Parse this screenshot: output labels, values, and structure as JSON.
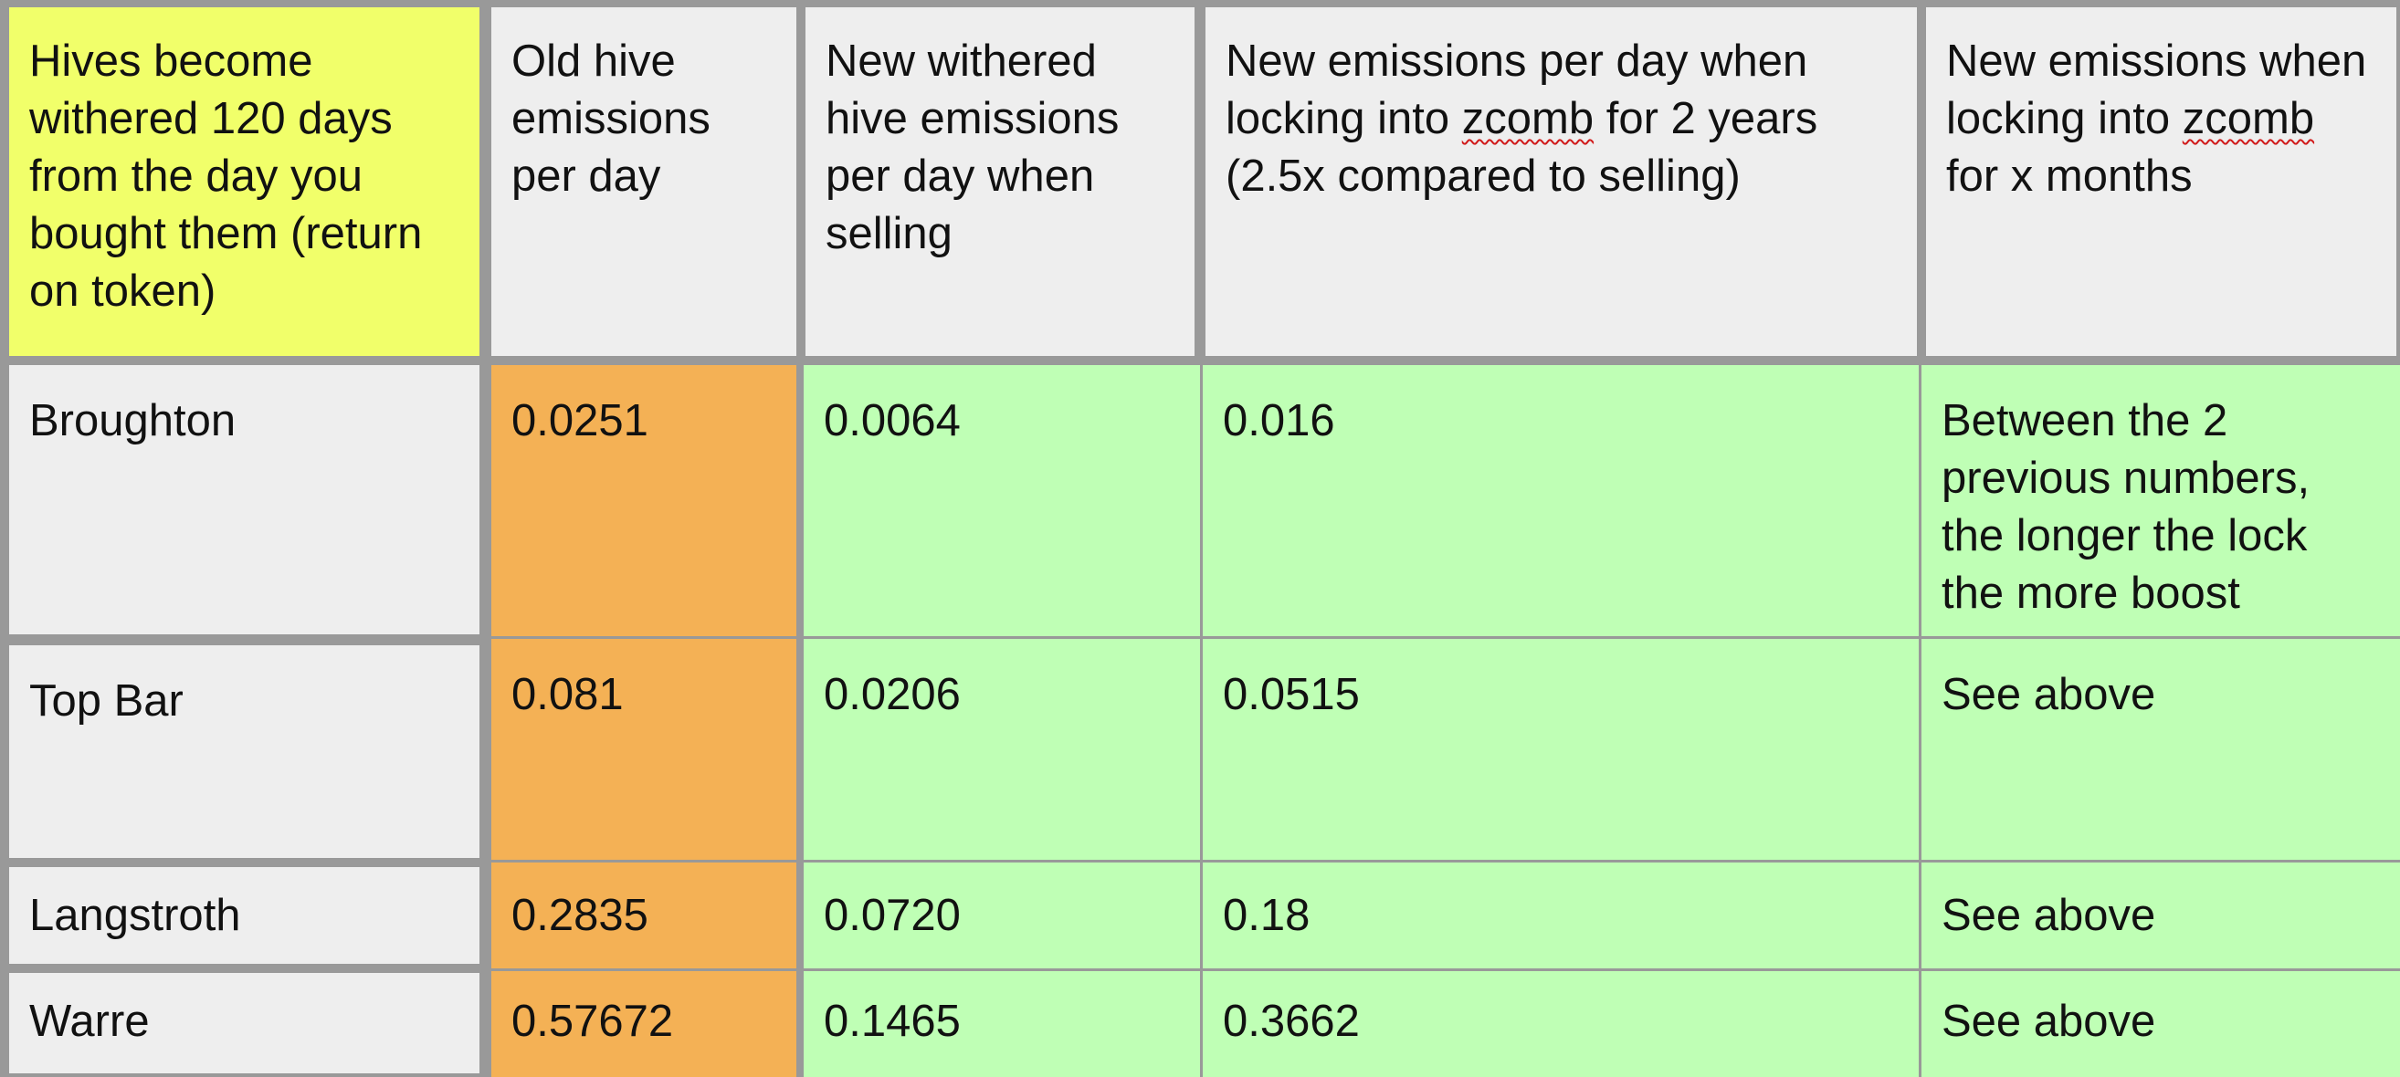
{
  "headers": {
    "col1": "Hives become withered 120 days from the day you bought them (return on token)",
    "col2": "Old hive emissions per day",
    "col3": "New withered hive emissions per day when selling",
    "col4_before": "New emissions per day when locking into ",
    "col4_link": "zcomb",
    "col4_after": " for 2 years (2.5x compared to selling)",
    "col5_before": "New emissions when locking into ",
    "col5_link": "zcomb",
    "col5_after": " for x months"
  },
  "rows": [
    {
      "name": "Broughton",
      "old": "0.0251",
      "sell": "0.0064",
      "lock2y": "0.016",
      "lockx": "Between the 2 previous numbers, the longer the lock the more boost"
    },
    {
      "name": "Top Bar",
      "old": "0.081",
      "sell": "0.0206",
      "lock2y": "0.0515",
      "lockx": "See above"
    },
    {
      "name": "Langstroth",
      "old": "0.2835",
      "sell": "0.0720",
      "lock2y": "0.18",
      "lockx": "See above"
    },
    {
      "name": "Warre",
      "old": "0.57672",
      "sell": "0.1465",
      "lock2y": "0.3662",
      "lockx": "See above"
    }
  ],
  "colors": {
    "header_highlight": "#f1ff6a",
    "header_bg": "#eeeeee",
    "old_emissions_bg": "#f4b155",
    "new_emissions_bg": "#bfffb5",
    "grid": "#999999"
  }
}
